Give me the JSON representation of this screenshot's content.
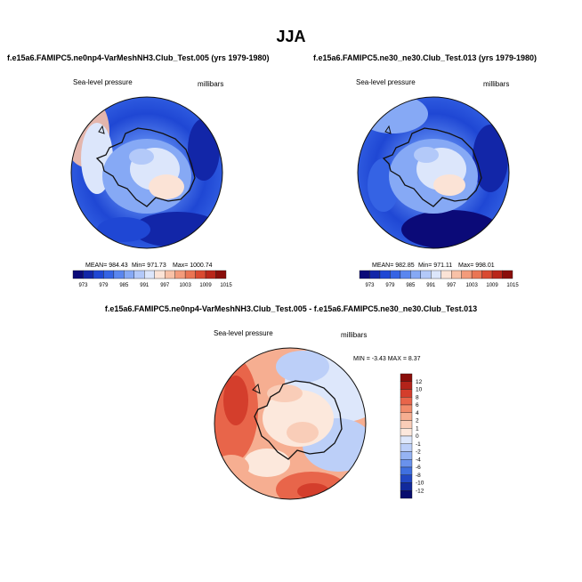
{
  "page": {
    "title": "JJA"
  },
  "panels": [
    {
      "id": "left",
      "title": "f.e15a6.FAMIPC5.ne0np4-VarMeshNH3.Club_Test.005 (yrs 1979-1980)",
      "variable": "Sea-level pressure",
      "units": "millibars",
      "stats": {
        "mean": "MEAN= 984.43",
        "min": "Min= 971.73",
        "max": "Max= 1000.74"
      }
    },
    {
      "id": "right",
      "title": "f.e15a6.FAMIPC5.ne30_ne30.Club_Test.013 (yrs 1979-1980)",
      "variable": "Sea-level pressure",
      "units": "millibars",
      "stats": {
        "mean": "MEAN= 982.85",
        "min": "Min= 971.11",
        "max": "Max= 998.01"
      }
    }
  ],
  "diff": {
    "title": "f.e15a6.FAMIPC5.ne0np4-VarMeshNH3.Club_Test.005 - f.e15a6.FAMIPC5.ne30_ne30.Club_Test.013",
    "variable": "Sea-level pressure",
    "units": "millibars",
    "minmax": "MIN = -3.43 MAX = 8.37"
  },
  "chart_data": [
    {
      "type": "heatmap",
      "title": "f.e15a6.FAMIPC5.ne0np4-VarMeshNH3.Club_Test.005 (yrs 1979-1980)",
      "projection": "south-polar-stereographic",
      "variable": "Sea-level pressure",
      "units": "millibars",
      "mean": 984.43,
      "min": 971.73,
      "max": 1000.74,
      "colorbar": {
        "orientation": "horizontal",
        "tick_labels": [
          "973",
          "979",
          "985",
          "991",
          "997",
          "1003",
          "1009",
          "1015"
        ],
        "colors": [
          "#0b0a78",
          "#1226a8",
          "#1f47d4",
          "#3563e4",
          "#5a86ef",
          "#86a9f5",
          "#b3c9f9",
          "#dce6fb",
          "#fbe3d6",
          "#f8c1a7",
          "#f39b7b",
          "#ea7554",
          "#d94a31",
          "#b9261a",
          "#8a0e0b"
        ]
      }
    },
    {
      "type": "heatmap",
      "title": "f.e15a6.FAMIPC5.ne30_ne30.Club_Test.013 (yrs 1979-1980)",
      "projection": "south-polar-stereographic",
      "variable": "Sea-level pressure",
      "units": "millibars",
      "mean": 982.85,
      "min": 971.11,
      "max": 998.01,
      "colorbar": {
        "orientation": "horizontal",
        "tick_labels": [
          "973",
          "979",
          "985",
          "991",
          "997",
          "1003",
          "1009",
          "1015"
        ],
        "colors": [
          "#0b0a78",
          "#1226a8",
          "#1f47d4",
          "#3563e4",
          "#5a86ef",
          "#86a9f5",
          "#b3c9f9",
          "#dce6fb",
          "#fbe3d6",
          "#f8c1a7",
          "#f39b7b",
          "#ea7554",
          "#d94a31",
          "#b9261a",
          "#8a0e0b"
        ]
      }
    },
    {
      "type": "heatmap",
      "title": "f.e15a6.FAMIPC5.ne0np4-VarMeshNH3.Club_Test.005 - f.e15a6.FAMIPC5.ne30_ne30.Club_Test.013",
      "projection": "south-polar-stereographic",
      "variable": "Sea-level pressure",
      "units": "millibars",
      "min": -3.43,
      "max": 8.37,
      "colorbar": {
        "orientation": "vertical",
        "tick_labels": [
          "12",
          "10",
          "8",
          "6",
          "4",
          "2",
          "1",
          "0",
          "-1",
          "-2",
          "-4",
          "-6",
          "-8",
          "-10",
          "-12"
        ],
        "colors": [
          "#8a0e0b",
          "#b3231a",
          "#d43e2c",
          "#e8654a",
          "#f18b6b",
          "#f6ae91",
          "#f9cdb8",
          "#fce8dc",
          "#dde7fb",
          "#bccff8",
          "#95b3f3",
          "#6a92ec",
          "#4070e0",
          "#2248c4",
          "#112a9c",
          "#080d6e"
        ]
      }
    }
  ]
}
